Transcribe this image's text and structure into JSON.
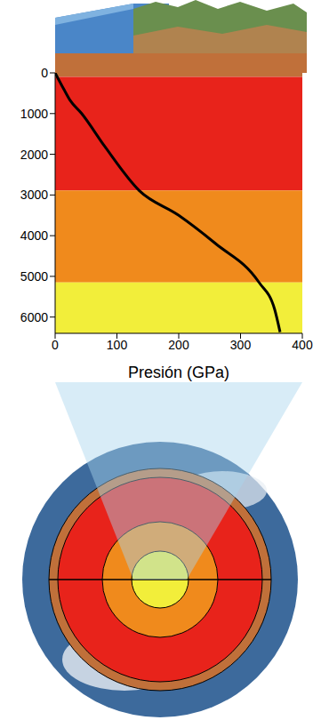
{
  "chart_data": {
    "type": "line",
    "x_label": "Presión (GPa)",
    "x": [
      0,
      14,
      24,
      43,
      80,
      136,
      200,
      260,
      330,
      355,
      364
    ],
    "values": [
      0,
      400,
      670,
      1000,
      1800,
      2890,
      3500,
      4200,
      5150,
      5800,
      6371
    ],
    "color": "#000000",
    "xlim": [
      0,
      400
    ],
    "xticks": [
      0,
      100,
      200,
      300,
      400
    ],
    "ylim": [
      0,
      6400
    ],
    "yticks": [
      0,
      1000,
      2000,
      3000,
      4000,
      5000,
      6000
    ],
    "grid": false,
    "bands": [
      {
        "from": 0,
        "to": 100,
        "color": "#c0703a"
      },
      {
        "from": 100,
        "to": 2890,
        "color": "#e8231b"
      },
      {
        "from": 2890,
        "to": 5150,
        "color": "#f08a1c"
      },
      {
        "from": 5150,
        "to": 6400,
        "color": "#f2ee3a"
      }
    ]
  }
}
